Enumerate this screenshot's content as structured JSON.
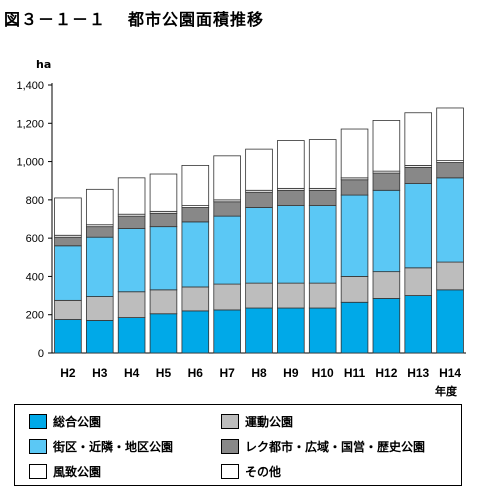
{
  "figure_label": "図３－１－１",
  "figure_title": "都市公園面積推移",
  "chart_data": {
    "type": "bar",
    "stacked": true,
    "ylabel": "ha",
    "xlabel": "年度",
    "ylim": [
      0,
      1400
    ],
    "yticks": [
      "0",
      "200",
      "400",
      "600",
      "800",
      "1,000",
      "1,200",
      "1,400"
    ],
    "ytick_values": [
      0,
      200,
      400,
      600,
      800,
      1000,
      1200,
      1400
    ],
    "grid": false,
    "categories": [
      "H2",
      "H3",
      "H4",
      "H5",
      "H6",
      "H7",
      "H8",
      "H9",
      "H10",
      "H11",
      "H12",
      "H13",
      "H14"
    ],
    "series": [
      {
        "name": "総合公園",
        "color": "#00a9e8",
        "values": [
          175,
          170,
          185,
          205,
          220,
          225,
          235,
          235,
          235,
          265,
          285,
          300,
          330
        ]
      },
      {
        "name": "運動公園",
        "color": "#bdbdbd",
        "values": [
          100,
          125,
          135,
          125,
          125,
          135,
          130,
          130,
          130,
          135,
          140,
          145,
          145
        ]
      },
      {
        "name": "街区・近隣・地区公園",
        "color": "#5bc8f5",
        "values": [
          285,
          310,
          330,
          330,
          340,
          355,
          395,
          405,
          405,
          425,
          425,
          440,
          440
        ]
      },
      {
        "name": "レク都市・広域・国営・歴史公園",
        "color": "#888888",
        "values": [
          45,
          55,
          65,
          70,
          75,
          75,
          80,
          80,
          80,
          80,
          90,
          85,
          80
        ]
      },
      {
        "name": "風致公園",
        "color": "#ffffff",
        "values": [
          10,
          10,
          10,
          10,
          10,
          10,
          10,
          10,
          10,
          10,
          10,
          10,
          10
        ]
      },
      {
        "name": "その他",
        "color": "#ffffff",
        "values": [
          195,
          185,
          190,
          195,
          210,
          230,
          215,
          250,
          255,
          255,
          265,
          275,
          275
        ]
      }
    ],
    "legend_order": [
      "総合公園",
      "運動公園",
      "街区・近隣・地区公園",
      "レク都市・広域・国営・歴史公園",
      "風致公園",
      "その他"
    ]
  }
}
